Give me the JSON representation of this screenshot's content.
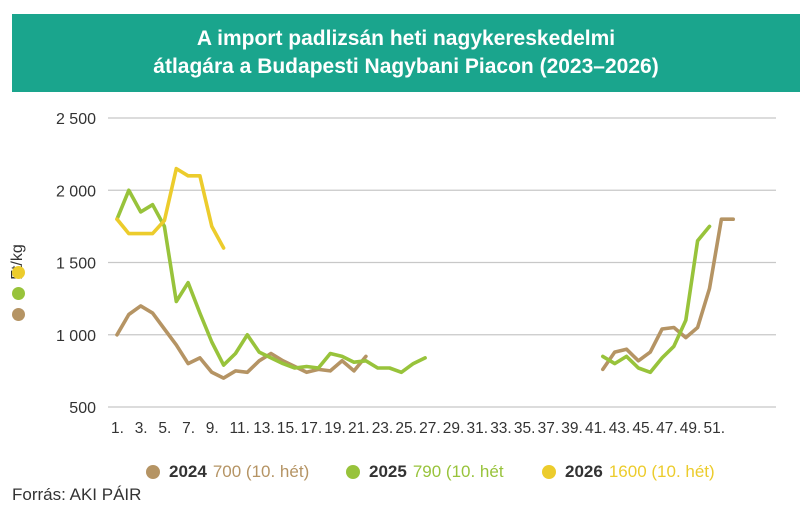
{
  "title": {
    "line1": "A import padlizsán heti nagykereskedelmi",
    "line2": "átlagára a Budapesti Nagybani Piacon (2023–2026)"
  },
  "colors": {
    "title_band": "#1aa58d",
    "grid": "#c8c8c8",
    "s2024": "#b59464",
    "s2025": "#98c33b",
    "s2026": "#eccc2c"
  },
  "source": "Forrás: AKI PÁIR",
  "chart_data": {
    "type": "line",
    "ylabel": "Ft/kg",
    "xlabel": "",
    "ylim": [
      500,
      2500
    ],
    "xlim": [
      1,
      53
    ],
    "yticks": [
      500,
      1000,
      1500,
      2000,
      2500
    ],
    "ytick_labels": [
      "500",
      "1 000",
      "1 500",
      "2 000",
      "2 500"
    ],
    "xticks": [
      1,
      3,
      5,
      7,
      9,
      11,
      13,
      15,
      17,
      19,
      21,
      23,
      25,
      27,
      29,
      31,
      33,
      35,
      37,
      39,
      41,
      43,
      45,
      47,
      49,
      51
    ],
    "xtick_labels": [
      "1.",
      "3.",
      "5.",
      "7.",
      "9.",
      "11.",
      "13.",
      "15.",
      "17.",
      "19.",
      "21.",
      "23.",
      "25.",
      "27.",
      "29.",
      "31.",
      "33.",
      "35.",
      "37.",
      "39.",
      "41.",
      "43.",
      "45.",
      "47.",
      "49.",
      "51."
    ],
    "grid": "horizontal",
    "legend_position": "bottom",
    "series": [
      {
        "name": "2024",
        "legend_value": "700 (10. hét)",
        "color": "#b59464",
        "segments": [
          {
            "x": [
              1,
              2,
              3,
              4,
              5,
              6,
              7,
              8,
              9,
              10,
              11,
              12,
              13,
              14,
              15,
              16,
              17,
              18,
              19,
              20,
              21,
              22
            ],
            "y": [
              1000,
              1140,
              1200,
              1150,
              1040,
              930,
              800,
              840,
              740,
              700,
              750,
              740,
              820,
              870,
              820,
              780,
              740,
              760,
              750,
              820,
              750,
              850
            ]
          },
          {
            "x": [
              42,
              43,
              44,
              45,
              46,
              47,
              48,
              49,
              50,
              51,
              52,
              53
            ],
            "y": [
              760,
              880,
              900,
              820,
              880,
              1040,
              1050,
              980,
              1050,
              1320,
              1800,
              1800
            ]
          }
        ]
      },
      {
        "name": "2025",
        "legend_value": "790 (10. hét",
        "color": "#98c33b",
        "segments": [
          {
            "x": [
              1,
              2,
              3,
              4,
              5,
              6,
              7,
              8,
              9,
              10,
              11,
              12,
              13,
              14,
              15,
              16,
              17,
              18,
              19,
              20,
              21,
              22,
              23,
              24,
              25,
              26,
              27
            ],
            "y": [
              1800,
              2000,
              1850,
              1900,
              1750,
              1230,
              1360,
              1150,
              950,
              790,
              870,
              1000,
              880,
              840,
              800,
              770,
              780,
              770,
              870,
              850,
              810,
              820,
              770,
              770,
              740,
              800,
              840
            ]
          },
          {
            "x": [
              42,
              43,
              44,
              45,
              46,
              47,
              48,
              49,
              50,
              51
            ],
            "y": [
              850,
              800,
              850,
              770,
              740,
              840,
              920,
              1100,
              1650,
              1750
            ]
          }
        ]
      },
      {
        "name": "2026",
        "legend_value": "1600 (10. hét)",
        "color": "#eccc2c",
        "segments": [
          {
            "x": [
              1,
              2,
              3,
              4,
              5,
              6,
              7,
              8,
              9,
              10
            ],
            "y": [
              1800,
              1700,
              1700,
              1700,
              1790,
              2150,
              2100,
              2100,
              1750,
              1600
            ]
          }
        ]
      }
    ]
  }
}
